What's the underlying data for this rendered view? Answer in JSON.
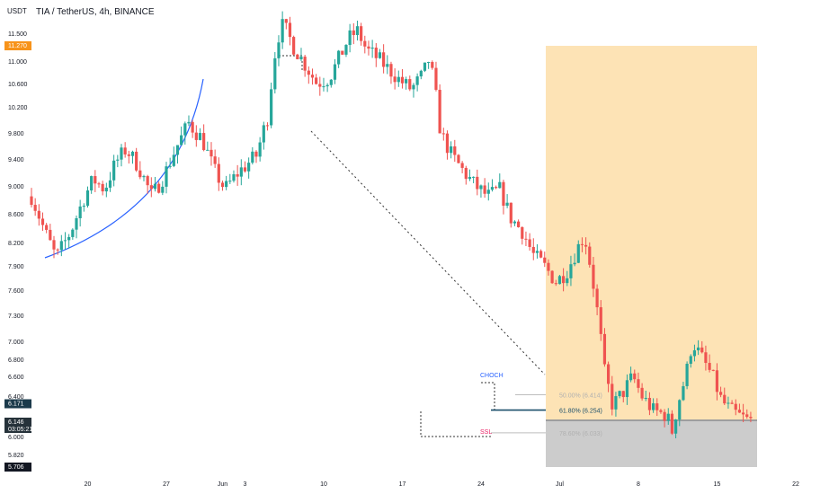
{
  "header": {
    "currency": "USDT",
    "symbol_line": "TIA / TetherUS, 4h, BINANCE"
  },
  "price_axis": {
    "ticks": [
      "11.500",
      "11.000",
      "10.600",
      "10.200",
      "9.800",
      "9.400",
      "9.000",
      "8.600",
      "8.200",
      "7.900",
      "7.600",
      "7.300",
      "7.000",
      "6.800",
      "6.600",
      "6.400",
      "6.000",
      "5.820",
      "5.706"
    ],
    "badges": {
      "target_price": "11.270",
      "last_price": "6.171",
      "current_price": "6.146",
      "countdown": "03:05:21",
      "stop_price": "5.706"
    }
  },
  "time_axis": {
    "labels": [
      "20",
      "27",
      "Jun",
      "3",
      "10",
      "17",
      "24",
      "Jul",
      "8",
      "15",
      "22"
    ]
  },
  "annotations": {
    "choch": "CHOCH",
    "ssl": "SSL",
    "fib_618": "61.80% (6.254)",
    "fib_50": "50.00% (6.414)",
    "fib_786": "78.60% (6.033)"
  },
  "colors": {
    "bull": "#26a69a",
    "bear": "#ef5350",
    "target_zone": "#fde3b5",
    "stop_zone": "#cccccc",
    "target_badge": "#f7931a",
    "curve": "#2962ff",
    "choch_color": "#2962ff",
    "ssl_color": "#e91e63"
  },
  "chart_data": {
    "type": "candlestick",
    "title": "TIA / TetherUS, 4h, BINANCE",
    "ylim": [
      5.706,
      11.6
    ],
    "x_range_days": [
      "May 15",
      "Jul 24"
    ],
    "trade_zone": {
      "entry": 6.146,
      "target": 11.27,
      "stop": 5.706
    },
    "fib_levels": [
      {
        "label": "50.00% (6.414)",
        "value": 6.414
      },
      {
        "label": "61.80% (6.254)",
        "value": 6.254
      },
      {
        "label": "78.60% (6.033)",
        "value": 6.033
      }
    ],
    "path": [
      [
        0,
        8.85
      ],
      [
        1.2,
        8.35
      ],
      [
        2.2,
        8.0
      ],
      [
        3.5,
        8.35
      ],
      [
        4.6,
        8.8
      ],
      [
        5.5,
        9.1
      ],
      [
        6.5,
        8.95
      ],
      [
        7.5,
        9.35
      ],
      [
        8.4,
        9.55
      ],
      [
        9.5,
        9.3
      ],
      [
        10.7,
        8.85
      ],
      [
        11.8,
        9.15
      ],
      [
        12.8,
        9.55
      ],
      [
        14.0,
        9.95
      ],
      [
        15.2,
        9.7
      ],
      [
        16.2,
        9.25
      ],
      [
        17.2,
        8.95
      ],
      [
        18.4,
        9.2
      ],
      [
        20.0,
        9.45
      ],
      [
        21.0,
        10.05
      ],
      [
        21.8,
        11.35
      ],
      [
        22.4,
        11.7
      ],
      [
        23.2,
        11.3
      ],
      [
        24.3,
        10.95
      ],
      [
        25.4,
        10.6
      ],
      [
        26.5,
        10.7
      ],
      [
        27.5,
        11.1
      ],
      [
        28.2,
        11.4
      ],
      [
        29.0,
        11.55
      ],
      [
        29.8,
        11.2
      ],
      [
        30.8,
        11.05
      ],
      [
        31.8,
        10.85
      ],
      [
        32.8,
        10.65
      ],
      [
        33.8,
        10.5
      ],
      [
        34.8,
        10.75
      ],
      [
        35.4,
        11.05
      ],
      [
        35.9,
        10.5
      ],
      [
        36.4,
        9.8
      ],
      [
        37.4,
        9.45
      ],
      [
        38.5,
        9.2
      ],
      [
        39.5,
        9.0
      ],
      [
        40.6,
        8.85
      ],
      [
        41.7,
        8.95
      ],
      [
        42.6,
        8.55
      ],
      [
        43.7,
        8.35
      ],
      [
        44.6,
        8.05
      ],
      [
        45.6,
        7.9
      ],
      [
        46.7,
        7.7
      ],
      [
        47.7,
        7.85
      ],
      [
        48.5,
        8.1
      ],
      [
        49.2,
        8.3
      ],
      [
        49.8,
        7.85
      ],
      [
        50.5,
        7.2
      ],
      [
        51.0,
        6.65
      ],
      [
        51.7,
        6.3
      ],
      [
        52.7,
        6.45
      ],
      [
        53.5,
        6.6
      ],
      [
        54.3,
        6.4
      ],
      [
        55.3,
        6.25
      ],
      [
        56.5,
        6.2
      ],
      [
        57.0,
        6.05
      ],
      [
        57.7,
        6.4
      ],
      [
        58.2,
        6.6
      ],
      [
        58.8,
        7.0
      ],
      [
        59.7,
        6.8
      ],
      [
        60.6,
        6.6
      ],
      [
        61.4,
        6.35
      ],
      [
        62.2,
        6.25
      ],
      [
        62.9,
        6.2
      ],
      [
        63.7,
        6.15
      ],
      [
        64.2,
        6.146
      ]
    ]
  }
}
